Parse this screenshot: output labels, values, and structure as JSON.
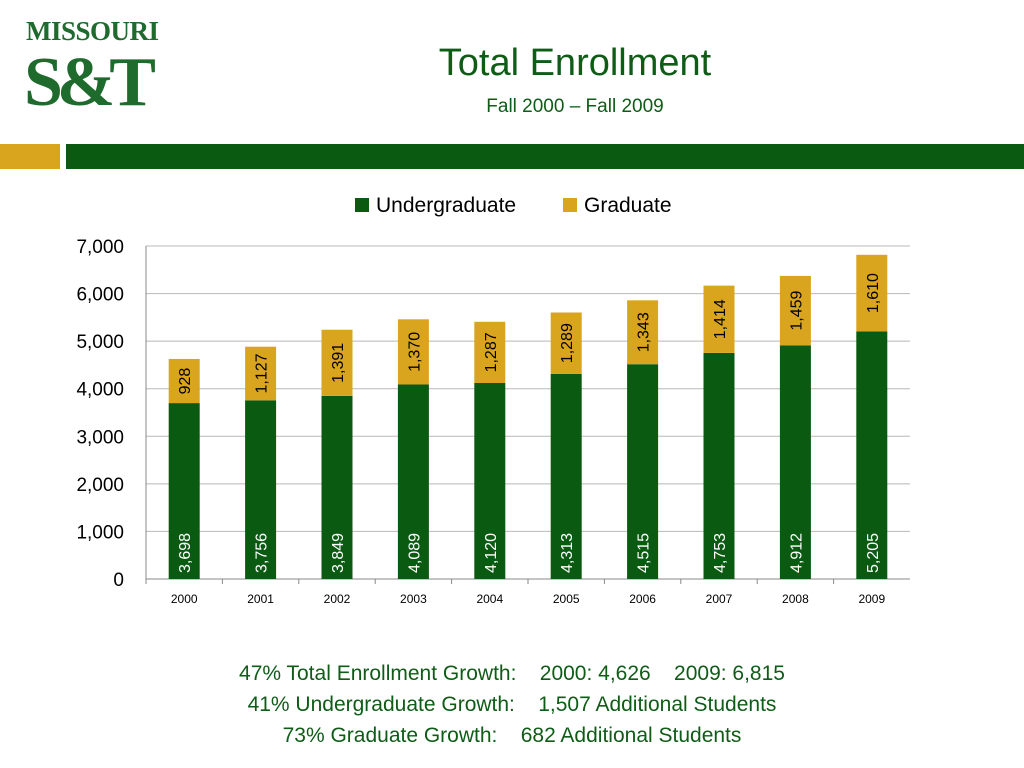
{
  "logo": {
    "word": "MISSOURI",
    "mark": "S&T"
  },
  "header": {
    "title": "Total Enrollment",
    "subtitle": "Fall 2000 – Fall 2009"
  },
  "chart_data": {
    "type": "bar",
    "stacked": true,
    "categories": [
      "2000",
      "2001",
      "2002",
      "2003",
      "2004",
      "2005",
      "2006",
      "2007",
      "2008",
      "2009"
    ],
    "series": [
      {
        "name": "Undergraduate",
        "color": "#0b5a12",
        "values": [
          3698,
          3756,
          3849,
          4089,
          4120,
          4313,
          4515,
          4753,
          4912,
          5205
        ],
        "labels": [
          "3,698",
          "3,756",
          "3,849",
          "4,089",
          "4,120",
          "4,313",
          "4,515",
          "4,753",
          "4,912",
          "5,205"
        ]
      },
      {
        "name": "Graduate",
        "color": "#d9a51f",
        "values": [
          928,
          1127,
          1391,
          1370,
          1287,
          1289,
          1343,
          1414,
          1459,
          1610
        ],
        "labels": [
          "928",
          "1,127",
          "1,391",
          "1,370",
          "1,287",
          "1,289",
          "1,343",
          "1,414",
          "1,459",
          "1,610"
        ]
      }
    ],
    "ylim": [
      0,
      7000
    ],
    "yticks": [
      0,
      1000,
      2000,
      3000,
      4000,
      5000,
      6000,
      7000
    ],
    "ytick_labels": [
      "0",
      "1,000",
      "2,000",
      "3,000",
      "4,000",
      "5,000",
      "6,000",
      "7,000"
    ],
    "grid": true,
    "legend": "top"
  },
  "footer": {
    "line1": "47% Total Enrollment Growth:    2000: 4,626    2009: 6,815",
    "line2": "41% Undergraduate Growth:    1,507 Additional Students",
    "line3": "73% Graduate Growth:    682 Additional Students"
  }
}
